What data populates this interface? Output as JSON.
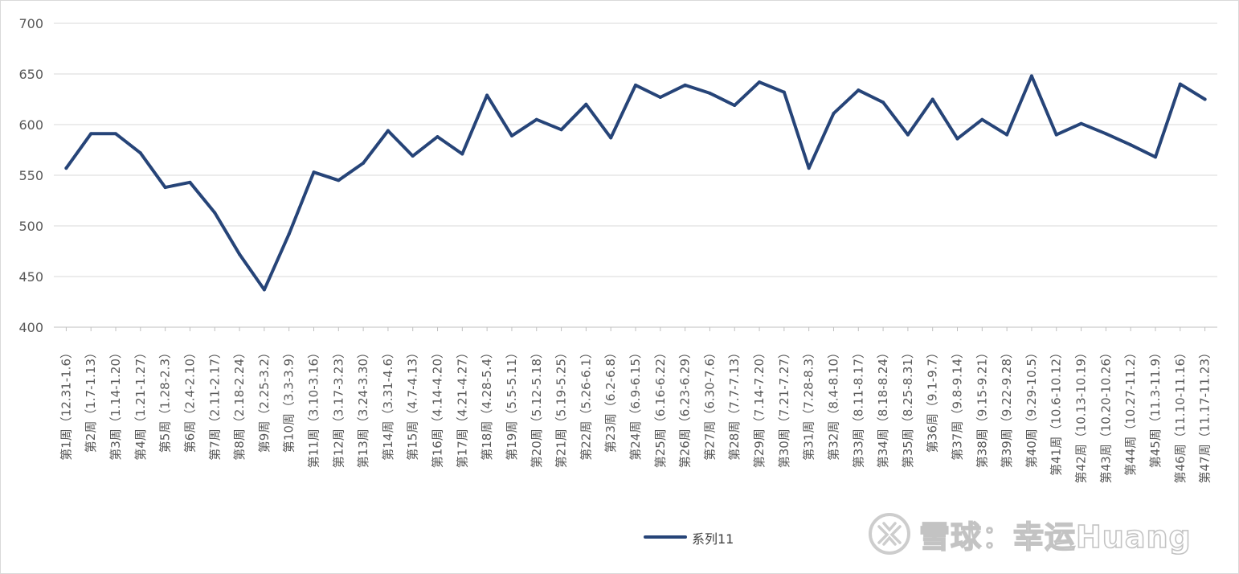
{
  "chart_data": {
    "type": "line",
    "title": "",
    "xlabel": "",
    "ylabel": "",
    "ylim": [
      400,
      700
    ],
    "yticks": [
      400,
      450,
      500,
      550,
      600,
      650,
      700
    ],
    "grid": true,
    "legend_position": "bottom",
    "categories": [
      "第1周（12.31-1.6）",
      "第2周（1.7-1.13）",
      "第3周（1.14-1.20）",
      "第4周（1.21-1.27）",
      "第5周（1.28-2.3）",
      "第6周（2.4-2.10）",
      "第7周（2.11-2.17）",
      "第8周（2.18-2.24）",
      "第9周（2.25-3.2）",
      "第10周（3.3-3.9）",
      "第11周（3.10-3.16）",
      "第12周（3.17-3.23）",
      "第13周（3.24-3.30）",
      "第14周（3.31-4.6）",
      "第15周（4.7-4.13）",
      "第16周（4.14-4.20）",
      "第17周（4.21-4.27）",
      "第18周（4.28-5.4）",
      "第19周（5.5-5.11）",
      "第20周（5.12-5.18）",
      "第21周（5.19-5.25）",
      "第22周（5.26-6.1）",
      "第23周（6.2-6.8）",
      "第24周（6.9-6.15）",
      "第25周（6.16-6.22）",
      "第26周（6.23-6.29）",
      "第27周（6.30-7.6）",
      "第28周（7.7-7.13）",
      "第29周（7.14-7.20）",
      "第30周（7.21-7.27）",
      "第31周（7.28-8.3）",
      "第32周（8.4-8.10）",
      "第33周（8.11-8.17）",
      "第34周（8.18-8.24）",
      "第35周（8.25-8.31）",
      "第36周（9.1-9.7）",
      "第37周（9.8-9.14）",
      "第38周（9.15-9.21）",
      "第39周（9.22-9.28）",
      "第40周（9.29-10.5）",
      "第41周（10.6-10.12）",
      "第42周（10.13-10.19）",
      "第43周（10.20-10.26）",
      "第44周（10.27-11.2）",
      "第45周（11.3-11.9）",
      "第46周（11.10-11.16）",
      "第47周（11.17-11.23）"
    ],
    "series": [
      {
        "name": "系列11",
        "color": "#264478",
        "values": [
          557,
          591,
          591,
          572,
          538,
          543,
          513,
          472,
          437,
          492,
          553,
          545,
          562,
          594,
          569,
          588,
          571,
          629,
          589,
          605,
          595,
          620,
          587,
          639,
          627,
          639,
          631,
          619,
          642,
          632,
          557,
          611,
          634,
          622,
          590,
          625,
          586,
          605,
          590,
          648,
          590,
          601,
          591,
          580,
          568,
          640,
          625
        ]
      }
    ]
  },
  "watermark": {
    "text": "雪球：幸运Huang",
    "logo": "xueqiu-snowball-icon"
  }
}
